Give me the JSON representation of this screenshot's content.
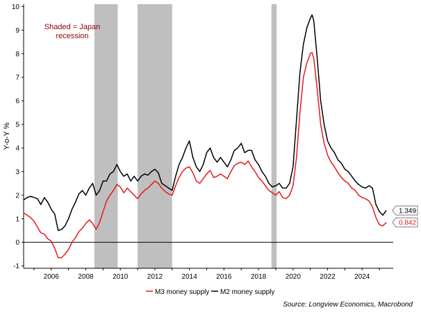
{
  "chart_data": {
    "type": "line",
    "ylabel": "Y-o-Y %",
    "annotation": "Shaded = Japan recession",
    "annotation_lines": [
      "Shaded = Japan",
      "recession"
    ],
    "annotation_color": "#8b0000",
    "source": "Source: Longview Economics, Macrobond",
    "x_range": [
      2004.4,
      2025.8
    ],
    "ylim": [
      -1.1,
      10.1
    ],
    "y_ticks": [
      -1,
      0,
      1,
      2,
      3,
      4,
      5,
      6,
      7,
      8,
      9,
      10
    ],
    "y_tick_labels": [
      "-1",
      "0",
      "1",
      "2",
      "3",
      "4",
      "5",
      "6",
      "7",
      "8",
      "9",
      "10"
    ],
    "x_ticks": [
      2006,
      2008,
      2010,
      2012,
      2014,
      2016,
      2018,
      2020,
      2022,
      2024
    ],
    "x_tick_labels": [
      "2006",
      "2008",
      "2010",
      "2012",
      "2014",
      "2016",
      "2018",
      "2020",
      "2022",
      "2024"
    ],
    "zero_line": true,
    "grid": false,
    "recessions": [
      [
        2008.5,
        2009.85
      ],
      [
        2011.0,
        2013.0
      ],
      [
        2018.75,
        2019.05
      ]
    ],
    "recession_color": "#bfbfbf",
    "legend_position": "bottom-center",
    "series": [
      {
        "name": "M3 money supply",
        "color": "#e31a1c",
        "end_label": "0.842",
        "points": [
          [
            2004.4,
            1.25
          ],
          [
            2004.6,
            1.15
          ],
          [
            2004.8,
            1.05
          ],
          [
            2005.0,
            0.9
          ],
          [
            2005.2,
            0.65
          ],
          [
            2005.4,
            0.4
          ],
          [
            2005.6,
            0.35
          ],
          [
            2005.8,
            0.15
          ],
          [
            2006.0,
            0.05
          ],
          [
            2006.2,
            -0.25
          ],
          [
            2006.4,
            -0.65
          ],
          [
            2006.6,
            -0.65
          ],
          [
            2006.8,
            -0.5
          ],
          [
            2007.0,
            -0.3
          ],
          [
            2007.2,
            0.0
          ],
          [
            2007.4,
            0.2
          ],
          [
            2007.6,
            0.45
          ],
          [
            2007.8,
            0.6
          ],
          [
            2008.0,
            0.8
          ],
          [
            2008.2,
            0.95
          ],
          [
            2008.4,
            0.8
          ],
          [
            2008.6,
            0.55
          ],
          [
            2008.8,
            0.85
          ],
          [
            2009.0,
            1.3
          ],
          [
            2009.2,
            1.75
          ],
          [
            2009.4,
            2.0
          ],
          [
            2009.6,
            2.2
          ],
          [
            2009.8,
            2.45
          ],
          [
            2010.0,
            2.35
          ],
          [
            2010.2,
            2.1
          ],
          [
            2010.4,
            2.3
          ],
          [
            2010.6,
            2.15
          ],
          [
            2010.8,
            2.0
          ],
          [
            2011.0,
            1.85
          ],
          [
            2011.2,
            2.05
          ],
          [
            2011.4,
            2.2
          ],
          [
            2011.6,
            2.3
          ],
          [
            2011.8,
            2.45
          ],
          [
            2012.0,
            2.6
          ],
          [
            2012.2,
            2.5
          ],
          [
            2012.4,
            2.3
          ],
          [
            2012.6,
            2.15
          ],
          [
            2012.8,
            2.05
          ],
          [
            2013.0,
            2.0
          ],
          [
            2013.2,
            2.4
          ],
          [
            2013.4,
            2.75
          ],
          [
            2013.6,
            3.0
          ],
          [
            2013.8,
            3.15
          ],
          [
            2014.0,
            3.2
          ],
          [
            2014.2,
            2.95
          ],
          [
            2014.4,
            2.6
          ],
          [
            2014.6,
            2.5
          ],
          [
            2014.8,
            2.7
          ],
          [
            2015.0,
            2.9
          ],
          [
            2015.2,
            3.05
          ],
          [
            2015.4,
            2.75
          ],
          [
            2015.6,
            2.8
          ],
          [
            2015.8,
            2.9
          ],
          [
            2016.0,
            2.8
          ],
          [
            2016.2,
            2.7
          ],
          [
            2016.4,
            3.0
          ],
          [
            2016.6,
            3.25
          ],
          [
            2016.8,
            3.35
          ],
          [
            2017.0,
            3.4
          ],
          [
            2017.2,
            3.3
          ],
          [
            2017.4,
            3.45
          ],
          [
            2017.6,
            3.2
          ],
          [
            2017.8,
            3.0
          ],
          [
            2018.0,
            2.75
          ],
          [
            2018.2,
            2.6
          ],
          [
            2018.4,
            2.4
          ],
          [
            2018.6,
            2.2
          ],
          [
            2018.8,
            2.1
          ],
          [
            2019.0,
            2.0
          ],
          [
            2019.2,
            2.15
          ],
          [
            2019.4,
            1.9
          ],
          [
            2019.6,
            1.85
          ],
          [
            2019.8,
            2.0
          ],
          [
            2020.0,
            2.4
          ],
          [
            2020.2,
            3.6
          ],
          [
            2020.4,
            5.5
          ],
          [
            2020.6,
            7.0
          ],
          [
            2020.8,
            7.6
          ],
          [
            2021.0,
            8.0
          ],
          [
            2021.1,
            8.05
          ],
          [
            2021.2,
            7.8
          ],
          [
            2021.4,
            6.5
          ],
          [
            2021.6,
            5.0
          ],
          [
            2021.8,
            4.2
          ],
          [
            2022.0,
            3.7
          ],
          [
            2022.2,
            3.4
          ],
          [
            2022.4,
            3.2
          ],
          [
            2022.6,
            2.95
          ],
          [
            2022.8,
            2.75
          ],
          [
            2023.0,
            2.6
          ],
          [
            2023.2,
            2.5
          ],
          [
            2023.4,
            2.3
          ],
          [
            2023.6,
            2.2
          ],
          [
            2023.8,
            2.0
          ],
          [
            2024.0,
            1.9
          ],
          [
            2024.2,
            1.85
          ],
          [
            2024.4,
            1.75
          ],
          [
            2024.6,
            1.5
          ],
          [
            2024.8,
            1.05
          ],
          [
            2025.0,
            0.75
          ],
          [
            2025.2,
            0.7
          ],
          [
            2025.4,
            0.84
          ]
        ]
      },
      {
        "name": "M2 money supply",
        "color": "#000000",
        "end_label": "1.349",
        "points": [
          [
            2004.4,
            1.8
          ],
          [
            2004.6,
            1.9
          ],
          [
            2004.8,
            1.95
          ],
          [
            2005.0,
            1.9
          ],
          [
            2005.2,
            1.85
          ],
          [
            2005.4,
            1.6
          ],
          [
            2005.6,
            1.9
          ],
          [
            2005.8,
            1.7
          ],
          [
            2006.0,
            1.4
          ],
          [
            2006.2,
            1.2
          ],
          [
            2006.4,
            0.5
          ],
          [
            2006.6,
            0.55
          ],
          [
            2006.8,
            0.7
          ],
          [
            2007.0,
            1.0
          ],
          [
            2007.2,
            1.4
          ],
          [
            2007.4,
            1.7
          ],
          [
            2007.6,
            2.05
          ],
          [
            2007.8,
            2.2
          ],
          [
            2008.0,
            2.0
          ],
          [
            2008.2,
            2.3
          ],
          [
            2008.4,
            2.5
          ],
          [
            2008.6,
            2.0
          ],
          [
            2008.8,
            2.2
          ],
          [
            2009.0,
            2.6
          ],
          [
            2009.2,
            2.6
          ],
          [
            2009.4,
            2.9
          ],
          [
            2009.6,
            3.0
          ],
          [
            2009.8,
            3.3
          ],
          [
            2010.0,
            3.0
          ],
          [
            2010.2,
            2.8
          ],
          [
            2010.4,
            2.9
          ],
          [
            2010.6,
            2.6
          ],
          [
            2010.8,
            2.8
          ],
          [
            2011.0,
            2.6
          ],
          [
            2011.2,
            2.8
          ],
          [
            2011.4,
            2.9
          ],
          [
            2011.6,
            2.85
          ],
          [
            2011.8,
            3.0
          ],
          [
            2012.0,
            3.1
          ],
          [
            2012.2,
            2.95
          ],
          [
            2012.4,
            2.5
          ],
          [
            2012.6,
            2.4
          ],
          [
            2012.8,
            2.3
          ],
          [
            2013.0,
            2.2
          ],
          [
            2013.2,
            2.8
          ],
          [
            2013.4,
            3.3
          ],
          [
            2013.6,
            3.6
          ],
          [
            2013.8,
            4.0
          ],
          [
            2014.0,
            4.3
          ],
          [
            2014.2,
            3.6
          ],
          [
            2014.4,
            3.2
          ],
          [
            2014.6,
            3.0
          ],
          [
            2014.8,
            3.3
          ],
          [
            2015.0,
            3.8
          ],
          [
            2015.2,
            4.0
          ],
          [
            2015.4,
            3.6
          ],
          [
            2015.6,
            3.4
          ],
          [
            2015.8,
            3.6
          ],
          [
            2016.0,
            3.4
          ],
          [
            2016.2,
            3.2
          ],
          [
            2016.4,
            3.5
          ],
          [
            2016.6,
            3.9
          ],
          [
            2016.8,
            4.0
          ],
          [
            2017.0,
            4.2
          ],
          [
            2017.2,
            3.8
          ],
          [
            2017.4,
            3.9
          ],
          [
            2017.6,
            3.9
          ],
          [
            2017.8,
            3.5
          ],
          [
            2018.0,
            3.3
          ],
          [
            2018.2,
            3.0
          ],
          [
            2018.4,
            2.8
          ],
          [
            2018.6,
            2.5
          ],
          [
            2018.8,
            2.35
          ],
          [
            2019.0,
            2.4
          ],
          [
            2019.2,
            2.5
          ],
          [
            2019.4,
            2.3
          ],
          [
            2019.6,
            2.3
          ],
          [
            2019.8,
            2.5
          ],
          [
            2020.0,
            3.2
          ],
          [
            2020.2,
            5.2
          ],
          [
            2020.4,
            7.2
          ],
          [
            2020.6,
            8.4
          ],
          [
            2020.8,
            9.1
          ],
          [
            2021.0,
            9.5
          ],
          [
            2021.1,
            9.65
          ],
          [
            2021.2,
            9.4
          ],
          [
            2021.4,
            7.8
          ],
          [
            2021.6,
            6.0
          ],
          [
            2021.8,
            5.0
          ],
          [
            2022.0,
            4.3
          ],
          [
            2022.2,
            4.0
          ],
          [
            2022.4,
            3.8
          ],
          [
            2022.6,
            3.5
          ],
          [
            2022.8,
            3.35
          ],
          [
            2023.0,
            3.1
          ],
          [
            2023.2,
            3.0
          ],
          [
            2023.4,
            2.8
          ],
          [
            2023.6,
            2.6
          ],
          [
            2023.8,
            2.45
          ],
          [
            2024.0,
            2.35
          ],
          [
            2024.2,
            2.3
          ],
          [
            2024.4,
            2.4
          ],
          [
            2024.6,
            2.3
          ],
          [
            2024.8,
            1.6
          ],
          [
            2025.0,
            1.3
          ],
          [
            2025.2,
            1.15
          ],
          [
            2025.4,
            1.35
          ]
        ]
      }
    ]
  }
}
